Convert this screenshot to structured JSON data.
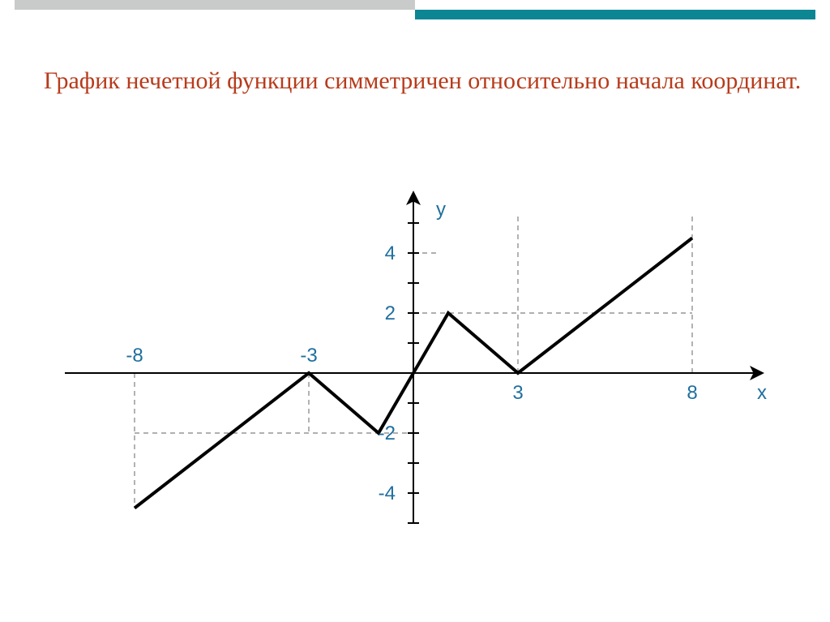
{
  "header_bar": {
    "grey_color": "#c9caca",
    "teal_color": "#0d8693"
  },
  "title_text": "График нечетной функции симметричен относительно начала координат.",
  "title_color": "#b73b1b",
  "title_fontsize": 30,
  "chart": {
    "type": "line",
    "x_axis_label": "x",
    "y_axis_label": "y",
    "x_range": [
      -10,
      10
    ],
    "y_range": [
      -5,
      6
    ],
    "x_ticks_labeled": [
      -8,
      -3,
      3,
      8
    ],
    "y_ticks_labeled": [
      -4,
      -2,
      2,
      4
    ],
    "y_minor_ticks": [
      -5,
      -4,
      -3,
      -2,
      -1,
      1,
      2,
      3,
      4,
      5
    ],
    "guide_lines": [
      {
        "type": "vertical",
        "x": -8,
        "y_from": 0,
        "y_to": -4.5
      },
      {
        "type": "vertical",
        "x": -3,
        "y_from": 0,
        "y_to": -2
      },
      {
        "type": "vertical",
        "x": 3,
        "y_from": 0,
        "y_to": 5.3
      },
      {
        "type": "vertical",
        "x": 8,
        "y_from": 0,
        "y_to": 5.3
      },
      {
        "type": "horizontal",
        "y": -2,
        "x_from": -8,
        "x_to": 0
      },
      {
        "type": "horizontal",
        "y": 2,
        "x_from": 0,
        "x_to": 8
      },
      {
        "type": "horizontal",
        "y": 4,
        "x_from": 0,
        "x_to": 0.7
      }
    ],
    "curve_points": [
      {
        "x": -8,
        "y": -4.5
      },
      {
        "x": -3,
        "y": 0
      },
      {
        "x": -1,
        "y": -2
      },
      {
        "x": 0,
        "y": 0
      },
      {
        "x": 1,
        "y": 2
      },
      {
        "x": 3,
        "y": 0
      },
      {
        "x": 8,
        "y": 4.5
      }
    ],
    "colors": {
      "background": "#ffffff",
      "axis": "#000000",
      "curve": "#000000",
      "guide": "#808080",
      "label": "#1f6f9e"
    },
    "stroke": {
      "curve_width": 4,
      "axis_width": 2,
      "guide_width": 1.2,
      "guide_dash": "6,5"
    },
    "label_fontsize": 24
  }
}
